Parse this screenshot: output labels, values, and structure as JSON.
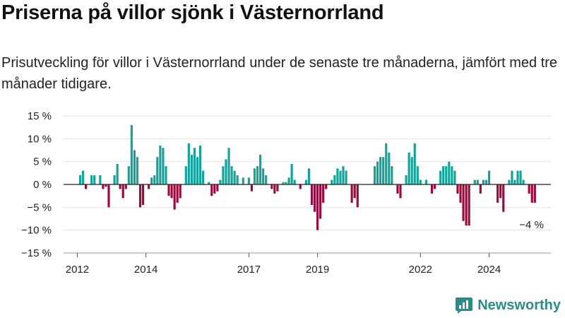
{
  "title": "Priserna på villor sjönk i Västernorrland",
  "subtitle": "Prisutveckling för villor i Västernorrland under de senaste tre månaderna, jämfört med tre månader tidigare.",
  "brand": {
    "name": "Newsworthy",
    "color": "#2a8c8c"
  },
  "chart_data": {
    "type": "bar",
    "title": "Priserna på villor sjönk i Västernorrland",
    "subtitle": "Prisutveckling för villor i Västernorrland under de senaste tre månaderna, jämfört med tre månader tidigare.",
    "xlabel": "",
    "ylabel": "",
    "ylim": [
      -15,
      15
    ],
    "yticks": [
      15,
      10,
      5,
      0,
      -5,
      -10,
      -15
    ],
    "ytick_labels": [
      "15 %",
      "10 %",
      "5 %",
      "0 %",
      "−5 %",
      "−10 %",
      "−15 %"
    ],
    "xlim": [
      2011.6,
      2025.8
    ],
    "xticks": [
      2012,
      2014,
      2017,
      2019,
      2022,
      2024
    ],
    "xtick_labels": [
      "2012",
      "2014",
      "2017",
      "2019",
      "2022",
      "2024"
    ],
    "positive_color": "#14a39a",
    "negative_color": "#9b0a3e",
    "grid": true,
    "legend": "none",
    "last_value_label": "−4 %",
    "x_start": 2012.0,
    "step": 0.08333,
    "values": [
      0,
      2,
      3,
      -1,
      0,
      2,
      2,
      0,
      2,
      -1,
      -0.5,
      -5,
      0,
      2,
      4.5,
      -1,
      -3,
      -1,
      4,
      13,
      7.5,
      6,
      -5,
      -4.5,
      0,
      -1,
      1.5,
      2,
      6,
      8.5,
      8,
      4,
      -2.5,
      -3,
      -5.5,
      -4,
      -3,
      0,
      4,
      9,
      6.5,
      8,
      6,
      8.5,
      3,
      0,
      0.5,
      -2.5,
      -2,
      -1.5,
      1,
      4,
      5.5,
      8,
      4,
      3,
      2,
      0,
      1.5,
      0,
      1.5,
      -1.5,
      3.5,
      4,
      6.5,
      3.5,
      2,
      0,
      -1,
      -2,
      -1.5,
      0,
      0.5,
      0.5,
      1.5,
      4.5,
      1,
      0,
      -1,
      0,
      1,
      3.5,
      -4.5,
      -6,
      -10,
      -7.5,
      -4,
      -1,
      0,
      1,
      2,
      3.5,
      3,
      4,
      3,
      0,
      -4,
      -3,
      -5,
      0,
      0,
      0,
      0,
      0,
      4,
      5,
      6,
      6,
      9,
      7,
      4,
      0,
      -2,
      -3,
      0,
      2,
      7,
      6,
      9,
      4,
      1,
      0,
      1,
      0,
      -2,
      -1,
      0,
      3,
      4,
      4,
      5,
      4,
      3,
      -2,
      -4,
      -8,
      -9,
      -9,
      0,
      1,
      1,
      -2,
      1,
      1,
      3,
      0,
      0,
      -4,
      -3,
      -6,
      0,
      1,
      3,
      1,
      3,
      3,
      1,
      0,
      -2,
      -4,
      -4
    ]
  }
}
